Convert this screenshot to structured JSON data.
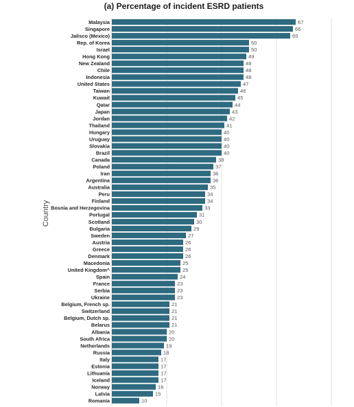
{
  "chart_data": {
    "type": "bar",
    "orientation": "horizontal",
    "title": "(a) Percentage of incident ESRD patients",
    "ylabel": "Country",
    "xlabel": "",
    "xlim": [
      0,
      80
    ],
    "grid": "vertical",
    "bar_color": "#2e6a80",
    "categories": [
      "Malaysia",
      "Singapore",
      "Jalisco (Mexico)",
      "Rep. of Korea",
      "Israel",
      "Hong Kong",
      "New Zealand",
      "Chile",
      "Indonesia",
      "United States",
      "Taiwan",
      "Kuwait",
      "Qatar",
      "Japan",
      "Jordan",
      "Thailand",
      "Hungary",
      "Uruguay",
      "Slovakia",
      "Brazil",
      "Canada",
      "Poland",
      "Iran",
      "Argentina",
      "Australia",
      "Peru",
      "Finland",
      "Bosnia and Herzegovina",
      "Portugal",
      "Scotland",
      "Bulgaria",
      "Sweden",
      "Austria",
      "Greece",
      "Denmark",
      "Macedonia",
      "United Kingdom^",
      "Spain",
      "France",
      "Serbia",
      "Ukraine",
      "Belgium, French sp.",
      "Switzerland",
      "Belgium, Dutch sp.",
      "Belarus",
      "Albania",
      "South Africa",
      "Netherlands",
      "Russia",
      "Italy",
      "Estonia",
      "Lithuania",
      "Iceland",
      "Norway",
      "Latvia",
      "Romania"
    ],
    "values": [
      67,
      66,
      65,
      50,
      50,
      49,
      48,
      48,
      48,
      47,
      46,
      45,
      44,
      43,
      42,
      41,
      40,
      40,
      40,
      40,
      38,
      37,
      36,
      36,
      35,
      34,
      34,
      33,
      31,
      30,
      29,
      27,
      26,
      26,
      26,
      25,
      25,
      24,
      23,
      23,
      23,
      21,
      21,
      21,
      21,
      20,
      20,
      19,
      18,
      17,
      17,
      17,
      17,
      16,
      15,
      10
    ]
  }
}
